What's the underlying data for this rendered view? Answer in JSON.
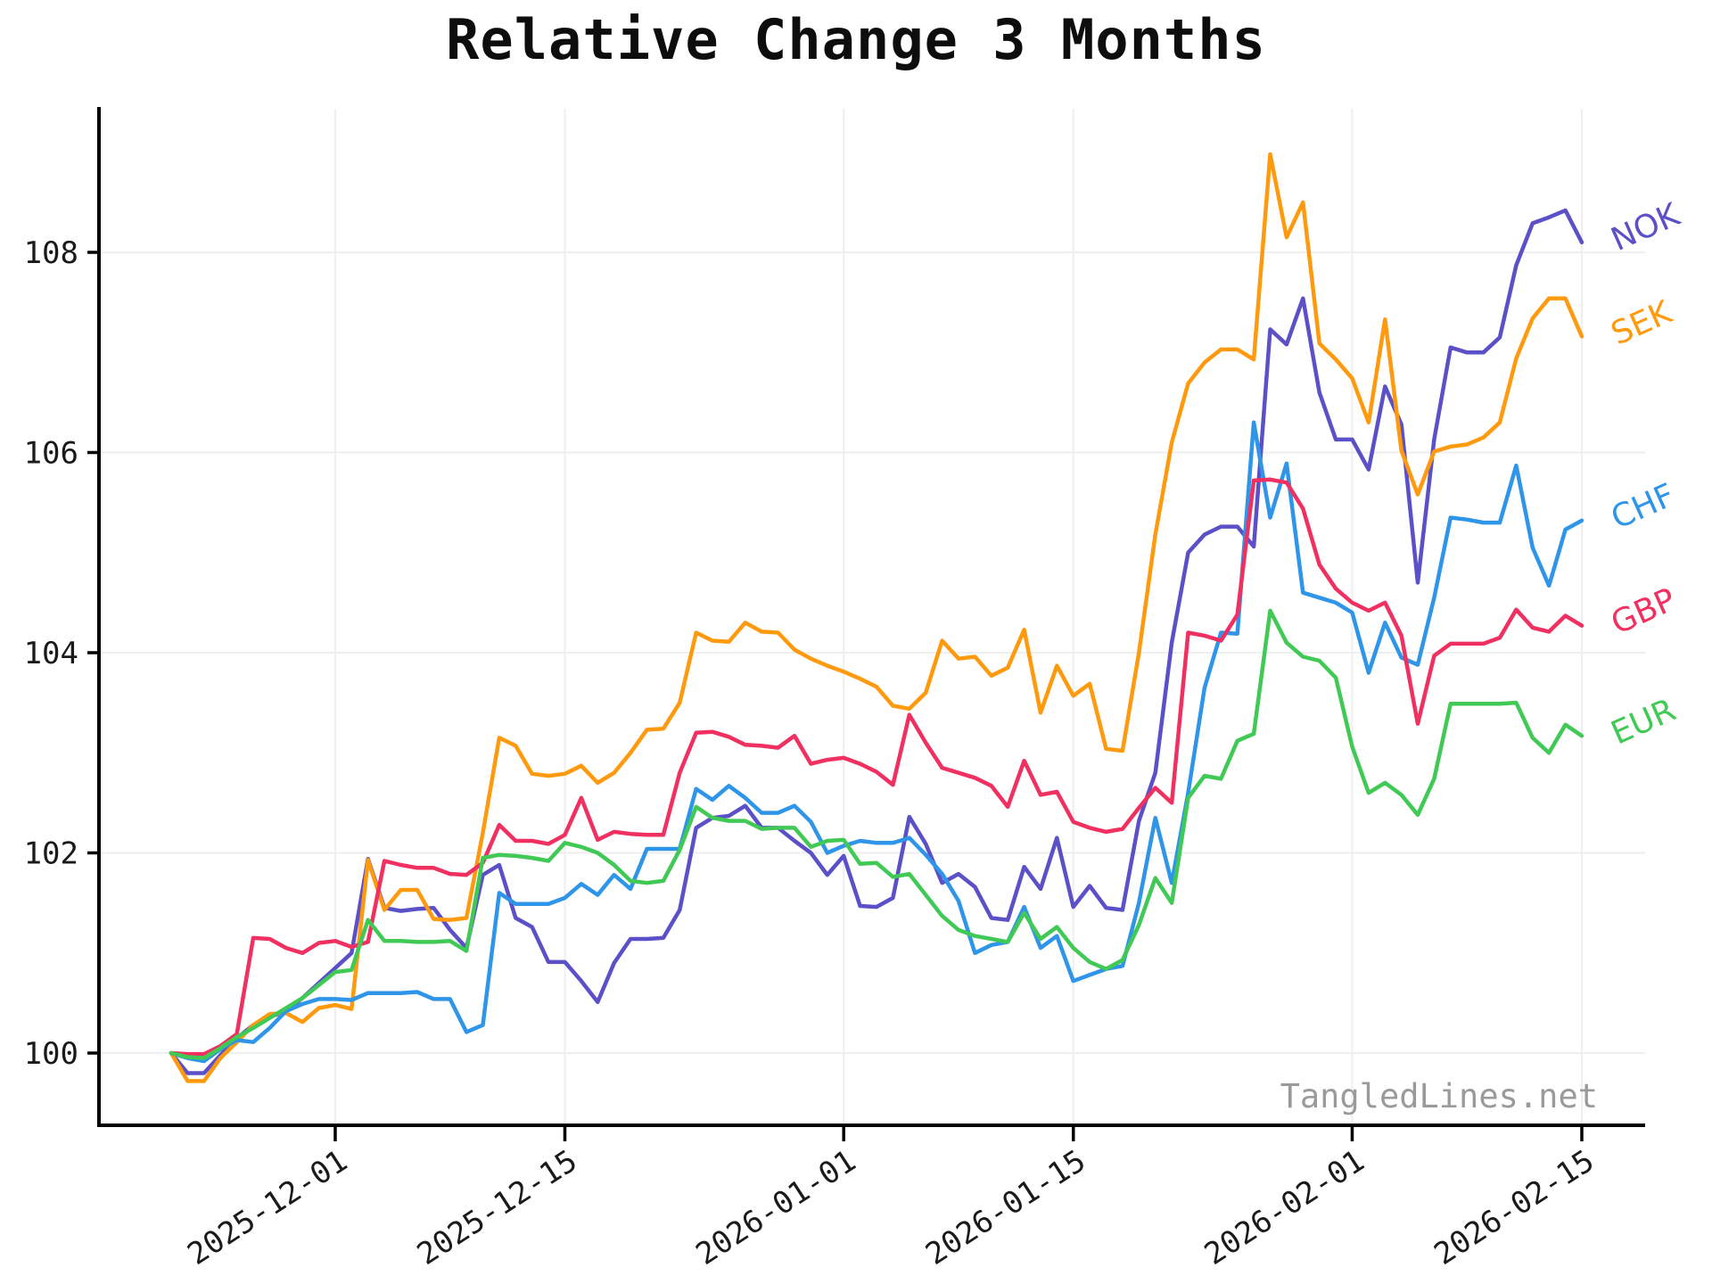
{
  "title": "Relative Change 3 Months",
  "watermark": "TangledLines.net",
  "chart_data": {
    "type": "line",
    "title": "Relative Change 3 Months",
    "xlabel": "",
    "ylabel": "",
    "x_start_date": "2025-11-21",
    "x_end_date": "2026-02-15",
    "x_points": 87,
    "x_tick_labels": [
      "2025-12-01",
      "2025-12-15",
      "2026-01-01",
      "2026-01-15",
      "2026-02-01",
      "2026-02-15"
    ],
    "x_tick_day_index": [
      10,
      24,
      41,
      55,
      72,
      86
    ],
    "y_ticks": [
      100,
      102,
      104,
      106,
      108
    ],
    "ylim": [
      99.28,
      109.45
    ],
    "grid": true,
    "grid_color": "#efefef",
    "legend_position": "right-end-labels",
    "series": [
      {
        "name": "NOK",
        "color": "#5b50c8",
        "values": [
          100.0,
          99.8,
          99.8,
          99.98,
          100.15,
          100.28,
          100.36,
          100.42,
          100.55,
          100.7,
          100.85,
          101.0,
          101.94,
          101.45,
          101.42,
          101.44,
          101.45,
          101.23,
          101.05,
          101.78,
          101.88,
          101.35,
          101.26,
          100.91,
          100.91,
          100.72,
          100.51,
          100.9,
          101.14,
          101.14,
          101.15,
          101.43,
          102.25,
          102.35,
          102.37,
          102.47,
          102.25,
          102.25,
          102.12,
          102.0,
          101.78,
          101.97,
          101.47,
          101.46,
          101.55,
          102.36,
          102.09,
          101.7,
          101.79,
          101.66,
          101.35,
          101.33,
          101.86,
          101.64,
          102.15,
          101.46,
          101.67,
          101.45,
          101.43,
          102.32,
          102.8,
          104.1,
          105.0,
          105.18,
          105.26,
          105.26,
          105.06,
          107.23,
          107.08,
          107.54,
          106.6,
          106.13,
          106.13,
          105.83,
          106.66,
          106.28,
          104.7,
          106.13,
          107.05,
          107.0,
          107.0,
          107.15,
          107.87,
          108.29,
          108.35,
          108.42,
          108.1
        ]
      },
      {
        "name": "SEK",
        "color": "#ff9a0e",
        "values": [
          100.0,
          99.72,
          99.72,
          99.95,
          100.11,
          100.28,
          100.39,
          100.4,
          100.31,
          100.45,
          100.48,
          100.44,
          101.93,
          101.43,
          101.63,
          101.63,
          101.34,
          101.33,
          101.35,
          102.2,
          103.15,
          103.07,
          102.79,
          102.77,
          102.79,
          102.87,
          102.7,
          102.8,
          103.0,
          103.23,
          103.24,
          103.5,
          104.2,
          104.12,
          104.11,
          104.3,
          104.21,
          104.2,
          104.03,
          103.94,
          103.87,
          103.81,
          103.74,
          103.66,
          103.47,
          103.44,
          103.6,
          104.12,
          103.94,
          103.96,
          103.77,
          103.85,
          104.23,
          103.4,
          103.87,
          103.57,
          103.69,
          103.04,
          103.02,
          104.0,
          105.18,
          106.1,
          106.69,
          106.9,
          107.03,
          107.03,
          106.93,
          108.98,
          108.15,
          108.5,
          107.09,
          106.93,
          106.74,
          106.3,
          107.33,
          106.02,
          105.58,
          106.01,
          106.06,
          106.08,
          106.15,
          106.3,
          106.94,
          107.34,
          107.54,
          107.54,
          107.16
        ]
      },
      {
        "name": "CHF",
        "color": "#2e95e8",
        "values": [
          100.0,
          99.95,
          99.92,
          100.04,
          100.13,
          100.11,
          100.25,
          100.42,
          100.49,
          100.54,
          100.54,
          100.53,
          100.6,
          100.6,
          100.6,
          100.61,
          100.54,
          100.54,
          100.21,
          100.28,
          101.6,
          101.49,
          101.49,
          101.49,
          101.55,
          101.69,
          101.58,
          101.78,
          101.64,
          102.04,
          102.04,
          102.04,
          102.64,
          102.53,
          102.67,
          102.55,
          102.4,
          102.4,
          102.47,
          102.31,
          102.0,
          102.07,
          102.12,
          102.1,
          102.1,
          102.15,
          101.98,
          101.79,
          101.52,
          101.0,
          101.08,
          101.11,
          101.46,
          101.05,
          101.17,
          100.72,
          100.78,
          100.84,
          100.87,
          101.5,
          102.35,
          101.7,
          102.6,
          103.65,
          104.2,
          104.19,
          106.3,
          105.35,
          105.89,
          104.6,
          104.55,
          104.5,
          104.4,
          103.8,
          104.3,
          103.95,
          103.88,
          104.55,
          105.35,
          105.33,
          105.3,
          105.3,
          105.87,
          105.05,
          104.67,
          105.23,
          105.32
        ]
      },
      {
        "name": "GBP",
        "color": "#f03061",
        "values": [
          100.0,
          99.99,
          99.99,
          100.07,
          100.19,
          101.15,
          101.14,
          101.05,
          101.0,
          101.1,
          101.12,
          101.06,
          101.11,
          101.92,
          101.88,
          101.85,
          101.85,
          101.79,
          101.78,
          101.9,
          102.28,
          102.12,
          102.12,
          102.09,
          102.18,
          102.55,
          102.13,
          102.21,
          102.19,
          102.18,
          102.18,
          102.8,
          103.2,
          103.21,
          103.16,
          103.08,
          103.07,
          103.05,
          103.17,
          102.89,
          102.93,
          102.95,
          102.89,
          102.81,
          102.68,
          103.38,
          103.1,
          102.85,
          102.8,
          102.75,
          102.67,
          102.46,
          102.92,
          102.58,
          102.61,
          102.31,
          102.25,
          102.21,
          102.24,
          102.45,
          102.65,
          102.5,
          104.2,
          104.17,
          104.12,
          104.38,
          105.72,
          105.73,
          105.7,
          105.44,
          104.88,
          104.64,
          104.5,
          104.42,
          104.5,
          104.17,
          103.29,
          103.97,
          104.09,
          104.09,
          104.09,
          104.15,
          104.43,
          104.25,
          104.21,
          104.37,
          104.27
        ]
      },
      {
        "name": "EUR",
        "color": "#41c956",
        "values": [
          100.0,
          99.96,
          99.95,
          100.05,
          100.16,
          100.25,
          100.35,
          100.45,
          100.55,
          100.68,
          100.81,
          100.83,
          101.33,
          101.12,
          101.12,
          101.11,
          101.11,
          101.12,
          101.02,
          101.95,
          101.98,
          101.97,
          101.95,
          101.92,
          102.1,
          102.06,
          102.0,
          101.88,
          101.72,
          101.7,
          101.72,
          102.03,
          102.46,
          102.35,
          102.32,
          102.32,
          102.24,
          102.25,
          102.25,
          102.06,
          102.12,
          102.13,
          101.89,
          101.9,
          101.76,
          101.79,
          101.58,
          101.37,
          101.23,
          101.17,
          101.14,
          101.11,
          101.4,
          101.14,
          101.26,
          101.05,
          100.91,
          100.84,
          100.93,
          101.28,
          101.75,
          101.5,
          102.55,
          102.77,
          102.74,
          103.12,
          103.19,
          104.42,
          104.1,
          103.96,
          103.92,
          103.75,
          103.06,
          102.6,
          102.7,
          102.58,
          102.38,
          102.74,
          103.49,
          103.49,
          103.49,
          103.49,
          103.5,
          103.15,
          103.0,
          103.28,
          103.17
        ]
      }
    ]
  },
  "axis_style": {
    "spine_color": "#000000",
    "tick_label_color": "#1a1a1a",
    "watermark_color": "#9a9a9a"
  }
}
